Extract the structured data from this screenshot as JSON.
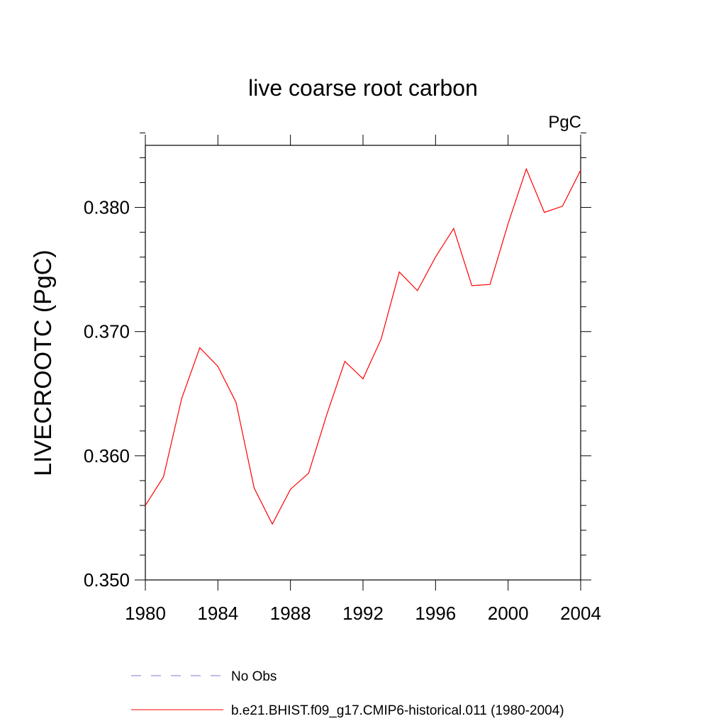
{
  "chart_data": {
    "type": "line",
    "title": "live coarse root carbon",
    "units": "PgC",
    "ylabel": "LIVECROOTC  (PgC)",
    "xlabel": "",
    "xlim": [
      1980,
      2004
    ],
    "ylim": [
      0.35,
      0.385
    ],
    "x_ticks": [
      1980,
      1984,
      1988,
      1992,
      1996,
      2000,
      2004
    ],
    "x_tick_labels": [
      "1980",
      "1984",
      "1988",
      "1992",
      "1996",
      "2000",
      "2004"
    ],
    "y_ticks": [
      0.35,
      0.36,
      0.37,
      0.38
    ],
    "y_tick_labels": [
      "0.350",
      "0.360",
      "0.370",
      "0.380"
    ],
    "grid": false,
    "series": [
      {
        "name": "b.e21.BHIST.f09_g17.CMIP6-historical.011 (1980-2004)",
        "color": "#ff0000",
        "x": [
          1980,
          1981,
          1982,
          1983,
          1984,
          1985,
          1986,
          1987,
          1988,
          1989,
          1990,
          1991,
          1992,
          1993,
          1994,
          1995,
          1996,
          1997,
          1998,
          1999,
          2000,
          2001,
          2002,
          2003,
          2004
        ],
        "y": [
          0.356,
          0.3583,
          0.3646,
          0.3687,
          0.3672,
          0.3643,
          0.3574,
          0.3545,
          0.3573,
          0.3586,
          0.3633,
          0.3676,
          0.3662,
          0.3694,
          0.3748,
          0.3733,
          0.376,
          0.3783,
          0.3737,
          0.3738,
          0.3787,
          0.3831,
          0.3796,
          0.3801,
          0.383
        ]
      }
    ],
    "legend": [
      {
        "label": "No Obs",
        "style": "dashed",
        "color": "#7b7bd4"
      },
      {
        "label": "b.e21.BHIST.f09_g17.CMIP6-historical.011 (1980-2004)",
        "style": "solid",
        "color": "#ff0000"
      }
    ],
    "legend_position": "bottom"
  }
}
